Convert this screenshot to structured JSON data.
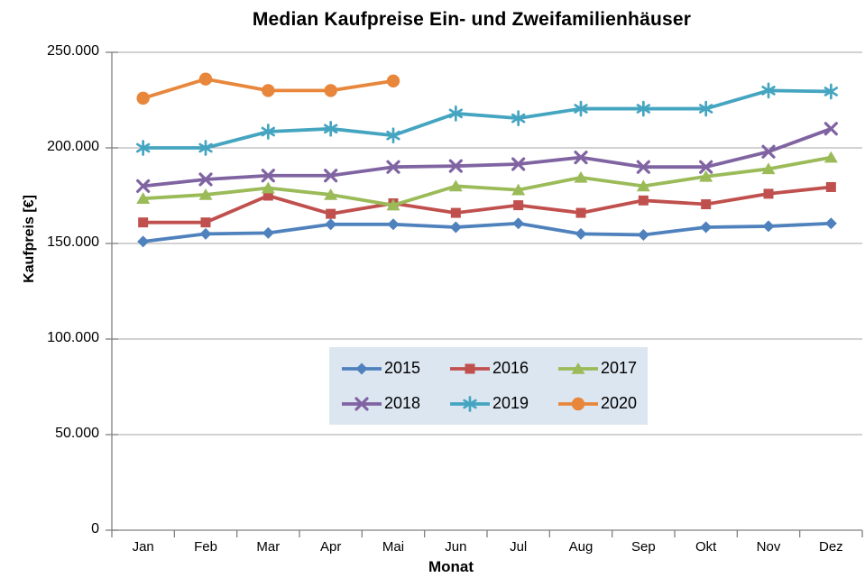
{
  "title": "Median Kaufpreise Ein- und Zweifamilienhäuser",
  "chart_data": {
    "type": "line",
    "x": [
      "Jan",
      "Feb",
      "Mar",
      "Apr",
      "Mai",
      "Jun",
      "Jul",
      "Aug",
      "Sep",
      "Okt",
      "Nov",
      "Dez"
    ],
    "xlabel": "Monat",
    "ylabel": "Kaufpreis [€]",
    "ylim": [
      0,
      250000
    ],
    "ytick_step": 50000,
    "ytick_labels": [
      "0",
      "50.000",
      "100.000",
      "150.000",
      "200.000",
      "250.000"
    ],
    "grid": true,
    "legend_position": "inside-lower-center",
    "series": [
      {
        "name": "2015",
        "color": "#4F81BD",
        "marker": "diamond",
        "values": [
          151000,
          155000,
          155500,
          160000,
          160000,
          158500,
          160500,
          155000,
          154500,
          158500,
          159000,
          160500
        ]
      },
      {
        "name": "2016",
        "color": "#C0504D",
        "marker": "square",
        "values": [
          161000,
          161000,
          175000,
          165500,
          171000,
          166000,
          170000,
          166000,
          172500,
          170500,
          176000,
          179500
        ]
      },
      {
        "name": "2017",
        "color": "#9BBB59",
        "marker": "triangle",
        "values": [
          173500,
          175500,
          179000,
          175500,
          170000,
          180000,
          178000,
          184500,
          180000,
          185000,
          189000,
          195000
        ]
      },
      {
        "name": "2018",
        "color": "#8064A2",
        "marker": "x",
        "values": [
          180000,
          183500,
          185500,
          185500,
          190000,
          190500,
          191500,
          195000,
          190000,
          190000,
          198000,
          210000
        ]
      },
      {
        "name": "2019",
        "color": "#45A5C1",
        "marker": "asterisk",
        "values": [
          200000,
          200000,
          208500,
          210000,
          206500,
          218000,
          215500,
          220500,
          220500,
          220500,
          230000,
          229500
        ]
      },
      {
        "name": "2020",
        "color": "#E8863C",
        "marker": "circle",
        "values": [
          226000,
          236000,
          230000,
          230000,
          235000
        ]
      }
    ]
  },
  "style": {
    "legend_bg": "#DCE6F1",
    "grid_color": "#A6A6A6",
    "axis_color": "#808080",
    "text_color": "#000000"
  }
}
